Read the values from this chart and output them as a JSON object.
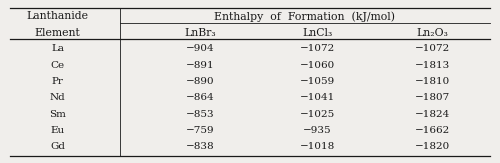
{
  "header_top_left": "Lanthanide",
  "header_top_right": "Enthalpy  of  Formation  (kJ/mol)",
  "header_bot_left": "Element",
  "col_headers": [
    "LnBr₃",
    "LnCl₃",
    "Ln₂O₃"
  ],
  "elements": [
    "La",
    "Ce",
    "Pr",
    "Nd",
    "Sm",
    "Eu",
    "Gd"
  ],
  "lnbr3": [
    "−904",
    "−891",
    "−890",
    "−864",
    "−853",
    "−759",
    "−838"
  ],
  "lncl3": [
    "−1072",
    "−1060",
    "−1059",
    "−1041",
    "−1025",
    "−935",
    "−1018"
  ],
  "ln2o3": [
    "−1072",
    "−1813",
    "−1810",
    "−1807",
    "−1824",
    "−1662",
    "−1820"
  ],
  "bg_color": "#f0eeeb",
  "text_color": "#1a1a1a",
  "font_size": 7.5,
  "header_font_size": 7.8,
  "fig_width": 5.0,
  "fig_height": 1.63
}
